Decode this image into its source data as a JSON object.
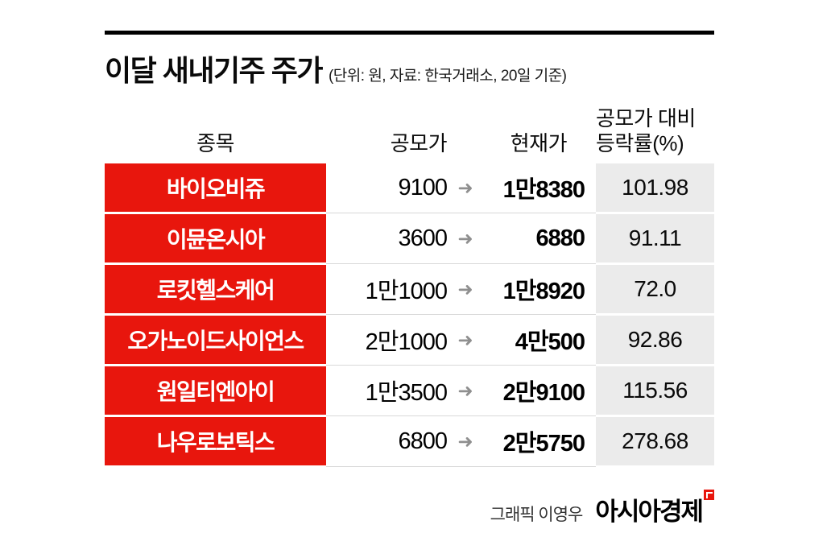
{
  "header": {
    "title": "이달 새내기주 주가",
    "subtitle": "(단위: 원, 자료: 한국거래소, 20일 기준)"
  },
  "table": {
    "col_name": "종목",
    "col_ipo": "공모가",
    "col_current": "현재가",
    "col_change_line1": "공모가 대비",
    "col_change_line2": "등락률(%)",
    "arrow": "➜",
    "rows": [
      {
        "name": "바이오비쥬",
        "ipo": "9100",
        "current": "1만8380",
        "change": "101.98"
      },
      {
        "name": "이뮨온시아",
        "ipo": "3600",
        "current": "6880",
        "change": "91.11"
      },
      {
        "name": "로킷헬스케어",
        "ipo": "1만1000",
        "current": "1만8920",
        "change": "72.0"
      },
      {
        "name": "오가노이드사이언스",
        "ipo": "2만1000",
        "current": "4만500",
        "change": "92.86"
      },
      {
        "name": "원일티엔아이",
        "ipo": "1만3500",
        "current": "2만9100",
        "change": "115.56"
      },
      {
        "name": "나우로보틱스",
        "ipo": "6800",
        "current": "2만5750",
        "change": "278.68"
      }
    ]
  },
  "footer": {
    "credit": "그래픽 이영우",
    "logo": "아시아경제"
  },
  "colors": {
    "accent_red": "#e8160d",
    "change_column_gray": "#ebebeb",
    "arrow_gray": "#8f8f8f"
  },
  "chart_data": {
    "type": "table",
    "title": "이달 새내기주 주가",
    "unit": "원",
    "source": "한국거래소",
    "as_of": "20일 기준",
    "columns": [
      "종목",
      "공모가",
      "현재가",
      "공모가 대비 등락률(%)"
    ],
    "rows": [
      [
        "바이오비쥬",
        9100,
        18380,
        101.98
      ],
      [
        "이뮨온시아",
        3600,
        6880,
        91.11
      ],
      [
        "로킷헬스케어",
        11000,
        18920,
        72.0
      ],
      [
        "오가노이드사이언스",
        21000,
        40500,
        92.86
      ],
      [
        "원일티엔아이",
        13500,
        29100,
        115.56
      ],
      [
        "나우로보틱스",
        6800,
        25750,
        278.68
      ]
    ]
  }
}
